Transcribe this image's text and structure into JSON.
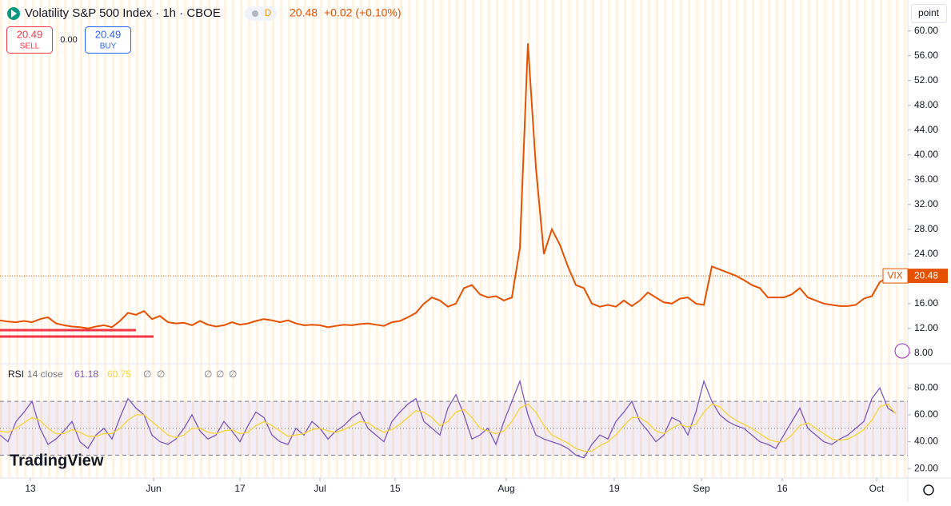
{
  "header": {
    "symbol": "Volatility S&P 500 Index · 1h · CBOE",
    "badge": "D",
    "last": "20.48",
    "change": "+0.02 (+0.10%)",
    "sell_price": "20.49",
    "sell": "SELL",
    "spread": "0.00",
    "buy_price": "20.49",
    "buy": "BUY",
    "scale_button": "point",
    "logo": "TradingView"
  },
  "chart_data": [
    {
      "type": "line",
      "series": [
        {
          "name": "VIX",
          "color": "#e65100",
          "values": [
            13.3,
            13.1,
            13.0,
            13.2,
            13.0,
            13.5,
            13.8,
            12.8,
            12.5,
            12.3,
            12.2,
            12.0,
            12.3,
            12.5,
            12.2,
            13.2,
            14.5,
            14.2,
            14.8,
            13.5,
            14.0,
            13.0,
            12.8,
            12.9,
            12.5,
            13.2,
            12.6,
            12.3,
            12.5,
            13.0,
            12.6,
            12.8,
            13.2,
            13.5,
            13.3,
            13.0,
            13.3,
            12.8,
            12.5,
            12.6,
            12.5,
            12.2,
            12.4,
            12.6,
            12.5,
            12.7,
            12.8,
            12.6,
            12.4,
            13.0,
            13.2,
            13.8,
            14.5,
            16.0,
            17.0,
            16.5,
            15.5,
            16.0,
            18.5,
            19.0,
            17.5,
            17.0,
            17.2,
            16.5,
            17.0,
            25.0,
            58.0,
            38.0,
            24.0,
            28.0,
            25.5,
            22.0,
            19.0,
            18.5,
            16.0,
            15.5,
            15.8,
            15.5,
            16.5,
            15.6,
            16.5,
            17.8,
            17.0,
            16.2,
            16.0,
            16.8,
            17.0,
            16.0,
            15.8,
            22.0,
            21.5,
            21.0,
            20.5,
            19.8,
            19.0,
            18.5,
            17.0,
            17.0,
            17.0,
            17.5,
            18.5,
            17.0,
            16.5,
            16.0,
            15.8,
            15.6,
            15.6,
            15.8,
            16.8,
            17.2,
            19.5,
            20.2,
            20.48
          ]
        }
      ],
      "xlim": [
        0,
        113.5
      ],
      "xticks": [
        {
          "value": 3.8,
          "label": "13"
        },
        {
          "value": 19.2,
          "label": "Jun"
        },
        {
          "value": 30.0,
          "label": "17"
        },
        {
          "value": 40.0,
          "label": "Jul"
        },
        {
          "value": 49.4,
          "label": "15"
        },
        {
          "value": 63.3,
          "label": "Aug"
        },
        {
          "value": 76.8,
          "label": "19"
        },
        {
          "value": 87.7,
          "label": "Sep"
        },
        {
          "value": 97.8,
          "label": "16"
        },
        {
          "value": 109.6,
          "label": "Oct"
        }
      ],
      "ylim": [
        6.3,
        65
      ],
      "yticks": [
        {
          "value": 8,
          "label": "8.00"
        },
        {
          "value": 12,
          "label": "12.00"
        },
        {
          "value": 16,
          "label": "16.00"
        },
        {
          "value": 20,
          "label": "20.00"
        },
        {
          "value": 24,
          "label": "24.00"
        },
        {
          "value": 28,
          "label": "28.00"
        },
        {
          "value": 32,
          "label": "32.00"
        },
        {
          "value": 36,
          "label": "36.00"
        },
        {
          "value": 40,
          "label": "40.00"
        },
        {
          "value": 44,
          "label": "44.00"
        },
        {
          "value": 48,
          "label": "48.00"
        },
        {
          "value": 52,
          "label": "52.00"
        },
        {
          "value": 56,
          "label": "56.00"
        },
        {
          "value": 60,
          "label": "60.00"
        }
      ]
    },
    {
      "type": "line",
      "title": "RSI",
      "subtitle": "14 close",
      "hidden_values": [
        "∅",
        "∅",
        "∅",
        "∅",
        "∅"
      ],
      "series": [
        {
          "color": "#7e57c2",
          "values": [
            45,
            40,
            55,
            62,
            70,
            50,
            38,
            42,
            48,
            55,
            40,
            35,
            45,
            50,
            42,
            58,
            72,
            65,
            60,
            45,
            40,
            38,
            42,
            50,
            60,
            48,
            42,
            45,
            55,
            48,
            40,
            52,
            62,
            58,
            45,
            40,
            38,
            50,
            45,
            55,
            50,
            42,
            48,
            52,
            58,
            62,
            50,
            45,
            40,
            55,
            62,
            68,
            72,
            55,
            50,
            45,
            65,
            75,
            60,
            42,
            45,
            50,
            38,
            55,
            70,
            85,
            60,
            45,
            42,
            40,
            38,
            35,
            30,
            28,
            38,
            45,
            42,
            55,
            62,
            70,
            55,
            48,
            40,
            45,
            58,
            55,
            45,
            62,
            85,
            70,
            60,
            55,
            52,
            50,
            45,
            40,
            38,
            35,
            45,
            55,
            65,
            50,
            45,
            40,
            38,
            42,
            45,
            50,
            55,
            72,
            80,
            65,
            61.18
          ]
        },
        {
          "color": "#f7d335",
          "values": [
            48,
            47,
            50,
            54,
            58,
            56,
            50,
            46,
            46,
            49,
            47,
            44,
            44,
            46,
            46,
            50,
            56,
            60,
            60,
            55,
            50,
            45,
            43,
            45,
            50,
            50,
            47,
            46,
            48,
            49,
            46,
            47,
            52,
            55,
            52,
            48,
            44,
            45,
            46,
            49,
            50,
            48,
            47,
            49,
            52,
            55,
            54,
            50,
            47,
            49,
            53,
            58,
            63,
            62,
            58,
            52,
            55,
            62,
            64,
            58,
            50,
            48,
            46,
            48,
            55,
            65,
            68,
            62,
            52,
            45,
            42,
            39,
            35,
            33,
            33,
            37,
            40,
            45,
            52,
            58,
            58,
            54,
            48,
            46,
            50,
            53,
            51,
            53,
            62,
            68,
            66,
            60,
            56,
            53,
            50,
            46,
            42,
            40,
            40,
            45,
            52,
            54,
            50,
            46,
            42,
            41,
            42,
            45,
            49,
            56,
            66,
            68,
            60.75
          ]
        }
      ],
      "levels": [
        30,
        50,
        70
      ],
      "xlim": [
        0,
        113.5
      ],
      "ylim": [
        13,
        98
      ],
      "yticks": [
        {
          "value": 20,
          "label": "20.00"
        },
        {
          "value": 40,
          "label": "40.00"
        },
        {
          "value": 60,
          "label": "60.00"
        },
        {
          "value": 80,
          "label": "80.00"
        }
      ]
    }
  ]
}
